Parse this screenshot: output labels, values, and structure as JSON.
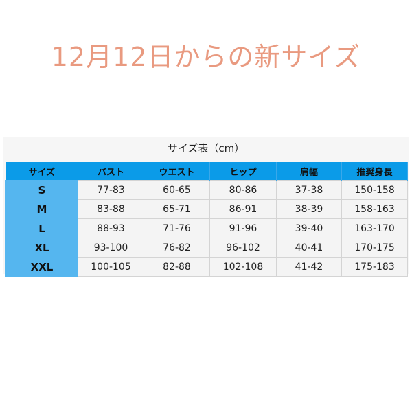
{
  "headline": "12月12日からの新サイズ",
  "caption": "サイズ表（cm）",
  "colors": {
    "headline": "#e99a80",
    "header_bg": "#0b9be8",
    "size_col_bg": "#55b6ef"
  },
  "table": {
    "headers": [
      "サイズ",
      "バスト",
      "ウエスト",
      "ヒップ",
      "肩幅",
      "推奨身長"
    ],
    "rows": [
      [
        "S",
        "77-83",
        "60-65",
        "80-86",
        "37-38",
        "150-158"
      ],
      [
        "M",
        "83-88",
        "65-71",
        "86-91",
        "38-39",
        "158-163"
      ],
      [
        "L",
        "88-93",
        "71-76",
        "91-96",
        "39-40",
        "163-170"
      ],
      [
        "XL",
        "93-100",
        "76-82",
        "96-102",
        "40-41",
        "170-175"
      ],
      [
        "XXL",
        "100-105",
        "82-88",
        "102-108",
        "41-42",
        "175-183"
      ]
    ]
  }
}
